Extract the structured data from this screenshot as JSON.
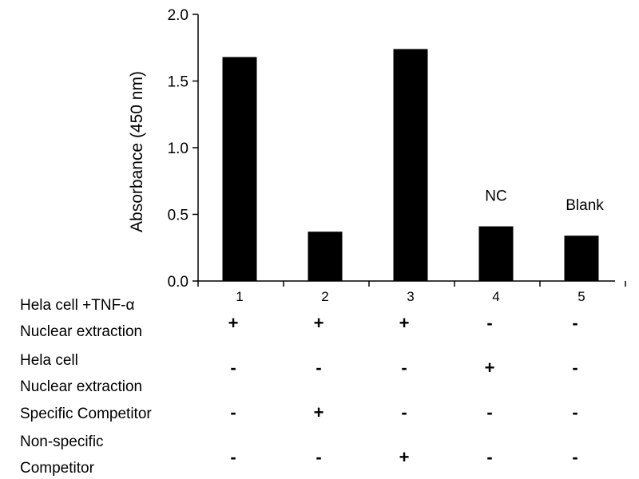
{
  "chart_data": {
    "type": "bar",
    "categories": [
      "1",
      "2",
      "3",
      "4",
      "5"
    ],
    "values": [
      1.68,
      0.37,
      1.74,
      0.41,
      0.34
    ],
    "ylabel": "Absorbance (450 nm)",
    "xlabel": "",
    "ylim": [
      0,
      2.0
    ],
    "yticks": [
      "0.0",
      "0.5",
      "1.0",
      "1.5",
      "2.0"
    ],
    "bar_color": "#000000",
    "grid": false,
    "annotations": [
      {
        "category": "4",
        "text": "NC"
      },
      {
        "category": "5",
        "text": "Blank"
      }
    ]
  },
  "conditions": [
    {
      "line1": "Hela cell +TNF-α",
      "line2": "Nuclear extraction",
      "signs": [
        "+",
        "+",
        "+",
        "-",
        "-"
      ]
    },
    {
      "line1": "Hela cell",
      "line2": "Nuclear extraction",
      "signs": [
        "-",
        "-",
        "-",
        "+",
        "-"
      ]
    },
    {
      "line1": "Specific Competitor",
      "line2": "",
      "signs": [
        "-",
        "+",
        "-",
        "-",
        "-"
      ]
    },
    {
      "line1": "Non-specific",
      "line2": "Competitor",
      "signs": [
        "-",
        "-",
        "+",
        "-",
        "-"
      ]
    }
  ]
}
